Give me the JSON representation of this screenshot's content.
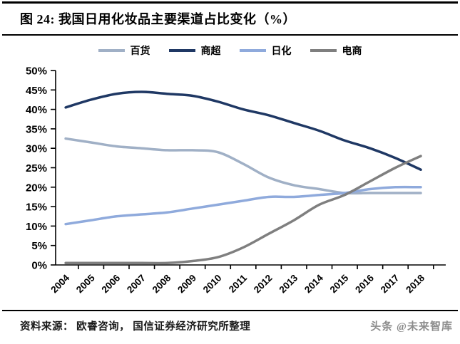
{
  "header": {
    "title": "图 24:  我国日用化妆品主要渠道占比变化（%）"
  },
  "footer": {
    "source": "资料来源： 欧睿咨询， 国信证券经济研究所整理",
    "watermark": "头条 @未来智库"
  },
  "chart_data": {
    "type": "line",
    "title": "我国日用化妆品主要渠道占比变化（%）",
    "categories": [
      "2004",
      "2005",
      "2006",
      "2007",
      "2008",
      "2009",
      "2010",
      "2011",
      "2012",
      "2013",
      "2014",
      "2015",
      "2016",
      "2017",
      "2018"
    ],
    "series": [
      {
        "name": "百货",
        "color": "#A0B0C6",
        "values": [
          32.5,
          31.5,
          30.5,
          30,
          29.5,
          29.5,
          29,
          26,
          22.5,
          20.5,
          19.5,
          18.5,
          18.5,
          18.5,
          18.5
        ]
      },
      {
        "name": "商超",
        "color": "#1F3864",
        "values": [
          40.5,
          42.5,
          44,
          44.5,
          44,
          43.5,
          42,
          40,
          38.5,
          36.5,
          34.5,
          32,
          30,
          27.5,
          24.5
        ]
      },
      {
        "name": "日化",
        "color": "#8FAADC",
        "values": [
          10.5,
          11.5,
          12.5,
          13,
          13.5,
          14.5,
          15.5,
          16.5,
          17.5,
          17.5,
          18,
          18.5,
          19.5,
          20,
          20
        ]
      },
      {
        "name": "电商",
        "color": "#7F7F7F",
        "values": [
          0.5,
          0.5,
          0.5,
          0.5,
          0.5,
          1,
          2,
          4.5,
          8,
          11.5,
          15.5,
          18,
          21.5,
          25,
          28
        ]
      }
    ],
    "xlabel": "",
    "ylabel": "",
    "ylim": [
      0,
      50
    ],
    "ytick_step": 5,
    "ytick_labels": [
      "0%",
      "5%",
      "10%",
      "15%",
      "20%",
      "25%",
      "30%",
      "35%",
      "40%",
      "45%",
      "50%"
    ],
    "axis_color": "#000000",
    "grid": false,
    "legend_position": "top"
  }
}
